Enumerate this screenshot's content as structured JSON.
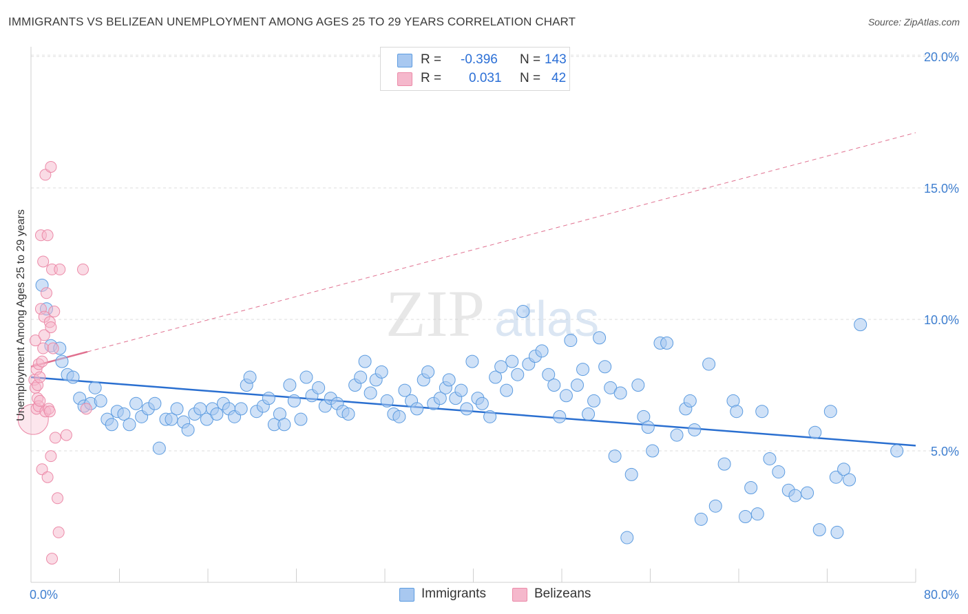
{
  "title": "IMMIGRANTS VS BELIZEAN UNEMPLOYMENT AMONG AGES 25 TO 29 YEARS CORRELATION CHART",
  "source": "Source: ZipAtlas.com",
  "watermark": {
    "zip": "ZIP",
    "atlas": "atlas"
  },
  "legend": {
    "r_label": "R =",
    "n_label": "N =",
    "rows": [
      {
        "name": "Immigrants",
        "r": "-0.396",
        "n": "143",
        "color": "#a8c8f0"
      },
      {
        "name": "Belizeans",
        "r": "0.031",
        "n": "42",
        "color": "#f5b8cc"
      }
    ]
  },
  "chart_data": {
    "type": "scatter",
    "title": "IMMIGRANTS VS BELIZEAN UNEMPLOYMENT AMONG AGES 25 TO 29 YEARS CORRELATION CHART",
    "xlabel": "",
    "ylabel": "Unemployment Among Ages 25 to 29 years",
    "xlim": [
      0,
      80
    ],
    "ylim": [
      0,
      20
    ],
    "x_tick_labels": [
      "0.0%",
      "80.0%"
    ],
    "y_ticks": [
      5,
      10,
      15,
      20
    ],
    "y_tick_labels": [
      "5.0%",
      "10.0%",
      "15.0%",
      "20.0%"
    ],
    "grid": "horizontal dashed",
    "legend_position": "top-center",
    "series": [
      {
        "name": "Immigrants",
        "color": "#5b9be0",
        "fill": "#a8c8f0",
        "trend": {
          "x": [
            0,
            80
          ],
          "y": [
            7.8,
            5.2
          ],
          "style": "solid",
          "color": "#2a6fd0"
        },
        "points": [
          [
            1.0,
            11.3
          ],
          [
            1.4,
            10.4
          ],
          [
            1.8,
            9.0
          ],
          [
            2.6,
            8.9
          ],
          [
            2.8,
            8.4
          ],
          [
            3.3,
            7.9
          ],
          [
            3.8,
            7.8
          ],
          [
            4.4,
            7.0
          ],
          [
            4.8,
            6.7
          ],
          [
            5.4,
            6.8
          ],
          [
            5.8,
            7.4
          ],
          [
            6.3,
            6.9
          ],
          [
            6.9,
            6.2
          ],
          [
            7.3,
            6.0
          ],
          [
            7.8,
            6.5
          ],
          [
            8.4,
            6.4
          ],
          [
            8.9,
            6.0
          ],
          [
            9.5,
            6.8
          ],
          [
            10.0,
            6.3
          ],
          [
            10.6,
            6.6
          ],
          [
            11.2,
            6.8
          ],
          [
            11.6,
            5.1
          ],
          [
            12.2,
            6.2
          ],
          [
            12.7,
            6.2
          ],
          [
            13.2,
            6.6
          ],
          [
            13.8,
            6.1
          ],
          [
            14.2,
            5.8
          ],
          [
            14.8,
            6.4
          ],
          [
            15.3,
            6.6
          ],
          [
            15.9,
            6.2
          ],
          [
            16.4,
            6.6
          ],
          [
            16.8,
            6.4
          ],
          [
            17.4,
            6.8
          ],
          [
            17.9,
            6.6
          ],
          [
            18.4,
            6.3
          ],
          [
            19.0,
            6.6
          ],
          [
            19.5,
            7.5
          ],
          [
            19.8,
            7.8
          ],
          [
            20.4,
            6.5
          ],
          [
            21.0,
            6.7
          ],
          [
            21.5,
            7.0
          ],
          [
            22.0,
            6.0
          ],
          [
            22.5,
            6.4
          ],
          [
            22.9,
            6.0
          ],
          [
            23.4,
            7.5
          ],
          [
            23.8,
            6.9
          ],
          [
            24.4,
            6.2
          ],
          [
            24.9,
            7.8
          ],
          [
            25.4,
            7.1
          ],
          [
            26.0,
            7.4
          ],
          [
            26.6,
            6.7
          ],
          [
            27.1,
            7.0
          ],
          [
            27.7,
            6.8
          ],
          [
            28.2,
            6.5
          ],
          [
            28.7,
            6.4
          ],
          [
            29.3,
            7.5
          ],
          [
            29.8,
            7.8
          ],
          [
            30.2,
            8.4
          ],
          [
            30.7,
            7.2
          ],
          [
            31.2,
            7.7
          ],
          [
            31.7,
            8.0
          ],
          [
            32.2,
            6.9
          ],
          [
            32.8,
            6.4
          ],
          [
            33.3,
            6.3
          ],
          [
            33.8,
            7.3
          ],
          [
            34.4,
            6.9
          ],
          [
            34.9,
            6.6
          ],
          [
            35.5,
            7.7
          ],
          [
            35.9,
            8.0
          ],
          [
            36.4,
            6.8
          ],
          [
            37.0,
            7.0
          ],
          [
            37.5,
            7.4
          ],
          [
            37.8,
            7.7
          ],
          [
            38.4,
            7.0
          ],
          [
            38.9,
            7.3
          ],
          [
            39.4,
            6.6
          ],
          [
            39.9,
            8.4
          ],
          [
            40.4,
            7.0
          ],
          [
            40.8,
            6.8
          ],
          [
            41.5,
            6.3
          ],
          [
            42.0,
            7.8
          ],
          [
            42.5,
            8.2
          ],
          [
            43.0,
            7.3
          ],
          [
            43.5,
            8.4
          ],
          [
            44.0,
            7.9
          ],
          [
            44.5,
            10.3
          ],
          [
            45.0,
            8.3
          ],
          [
            45.6,
            8.6
          ],
          [
            46.2,
            8.8
          ],
          [
            46.8,
            7.9
          ],
          [
            47.3,
            7.5
          ],
          [
            47.8,
            6.3
          ],
          [
            48.4,
            7.1
          ],
          [
            48.8,
            9.2
          ],
          [
            49.4,
            7.5
          ],
          [
            49.9,
            8.1
          ],
          [
            50.4,
            6.4
          ],
          [
            50.9,
            6.9
          ],
          [
            51.4,
            9.3
          ],
          [
            51.9,
            8.2
          ],
          [
            52.4,
            7.4
          ],
          [
            52.8,
            4.8
          ],
          [
            53.3,
            7.2
          ],
          [
            53.9,
            1.7
          ],
          [
            54.3,
            4.1
          ],
          [
            54.9,
            7.5
          ],
          [
            55.4,
            6.3
          ],
          [
            55.8,
            5.9
          ],
          [
            56.2,
            5.0
          ],
          [
            56.9,
            9.1
          ],
          [
            57.5,
            9.1
          ],
          [
            58.4,
            5.6
          ],
          [
            59.2,
            6.6
          ],
          [
            59.6,
            6.9
          ],
          [
            60.0,
            5.8
          ],
          [
            60.6,
            2.4
          ],
          [
            61.3,
            8.3
          ],
          [
            61.9,
            2.9
          ],
          [
            62.7,
            4.5
          ],
          [
            63.5,
            6.9
          ],
          [
            63.8,
            6.5
          ],
          [
            64.6,
            2.5
          ],
          [
            65.1,
            3.6
          ],
          [
            65.7,
            2.6
          ],
          [
            66.1,
            6.5
          ],
          [
            66.8,
            4.7
          ],
          [
            67.6,
            4.2
          ],
          [
            68.5,
            3.5
          ],
          [
            69.1,
            3.3
          ],
          [
            70.2,
            3.4
          ],
          [
            70.9,
            5.7
          ],
          [
            71.3,
            2.0
          ],
          [
            72.3,
            6.5
          ],
          [
            72.8,
            4.0
          ],
          [
            72.9,
            1.9
          ],
          [
            73.5,
            4.3
          ],
          [
            74.0,
            3.9
          ],
          [
            75.0,
            9.8
          ],
          [
            78.3,
            5.0
          ]
        ]
      },
      {
        "name": "Belizeans",
        "color": "#ec8aa8",
        "fill": "#f5b8cc",
        "trend": {
          "x_solid": [
            0,
            5.1
          ],
          "x_dashed": [
            5.1,
            80
          ],
          "y_at_0": 8.2,
          "y_at_80": 17.1,
          "color": "#e0708f"
        },
        "points": [
          [
            0.2,
            6.2
          ],
          [
            0.3,
            7.7
          ],
          [
            0.4,
            7.4
          ],
          [
            0.4,
            9.2
          ],
          [
            0.5,
            8.1
          ],
          [
            0.5,
            6.6
          ],
          [
            0.6,
            7.5
          ],
          [
            0.6,
            7.0
          ],
          [
            0.7,
            8.3
          ],
          [
            0.7,
            6.7
          ],
          [
            0.8,
            7.8
          ],
          [
            0.8,
            6.9
          ],
          [
            0.9,
            13.2
          ],
          [
            0.9,
            10.4
          ],
          [
            1.0,
            4.3
          ],
          [
            1.0,
            8.4
          ],
          [
            1.1,
            8.9
          ],
          [
            1.1,
            12.2
          ],
          [
            1.2,
            10.1
          ],
          [
            1.2,
            9.4
          ],
          [
            1.3,
            15.5
          ],
          [
            1.3,
            6.5
          ],
          [
            1.4,
            11.0
          ],
          [
            1.5,
            13.2
          ],
          [
            1.5,
            4.0
          ],
          [
            1.6,
            6.6
          ],
          [
            1.7,
            9.9
          ],
          [
            1.7,
            6.5
          ],
          [
            1.8,
            9.7
          ],
          [
            1.8,
            4.8
          ],
          [
            1.9,
            11.9
          ],
          [
            1.9,
            0.9
          ],
          [
            1.8,
            15.8
          ],
          [
            2.0,
            8.9
          ],
          [
            2.1,
            10.3
          ],
          [
            2.2,
            5.5
          ],
          [
            2.4,
            3.2
          ],
          [
            2.5,
            1.9
          ],
          [
            2.6,
            11.9
          ],
          [
            3.2,
            5.6
          ],
          [
            4.7,
            11.9
          ],
          [
            5.0,
            6.6
          ]
        ]
      }
    ]
  }
}
